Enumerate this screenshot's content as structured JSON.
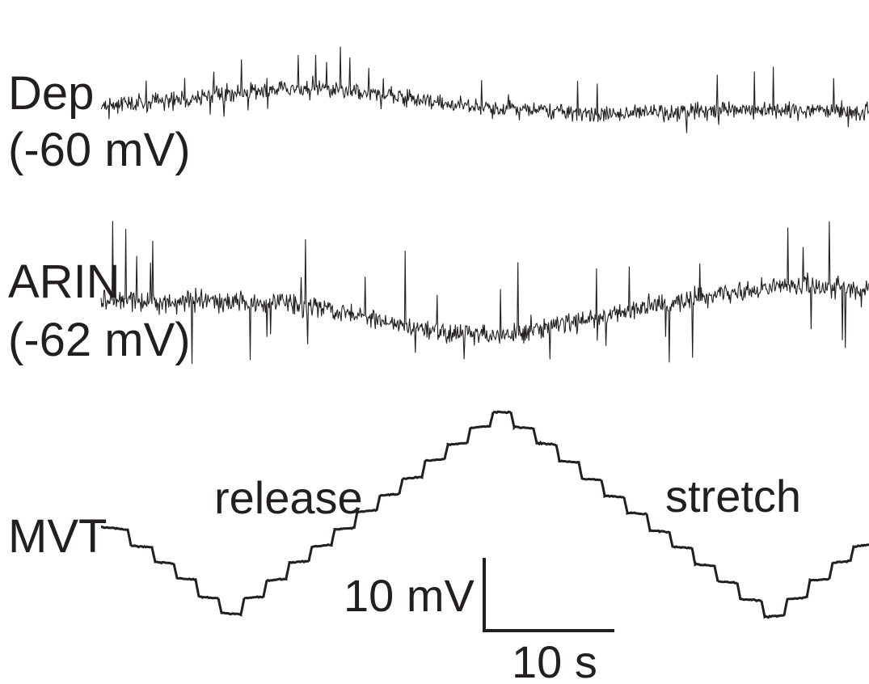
{
  "traces": [
    {
      "id": "dep",
      "label_line1": "Dep",
      "label_line2": "(-60 mV)"
    },
    {
      "id": "arin",
      "label_line1": "ARIN",
      "label_line2": "(-62 mV)"
    },
    {
      "id": "mvt",
      "label_line1": "MVT"
    }
  ],
  "annotations": {
    "release": "release",
    "stretch": "stretch"
  },
  "scale_bar": {
    "voltage_label": "10 mV",
    "time_label": "10 s"
  },
  "trace_color": "#231f20"
}
